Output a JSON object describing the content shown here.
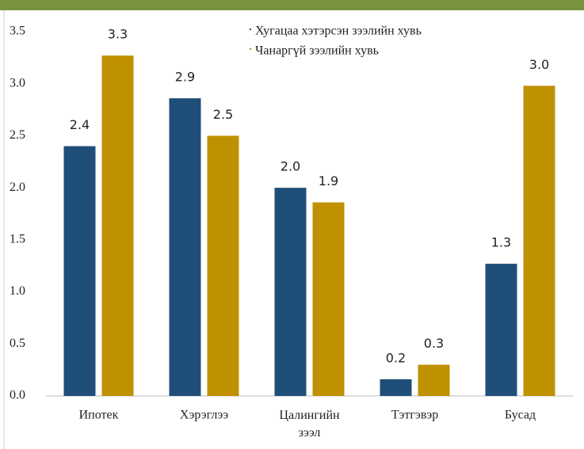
{
  "chart_data": {
    "type": "bar",
    "categories": [
      "Ипотек",
      "Хэрэглээ",
      "Цалингийн зээл",
      "Тэтгэвэр",
      "Бусад"
    ],
    "series": [
      {
        "name": "Хугацаа хэтэрсэн зээлийн хувь",
        "color": "#1f4e79",
        "values": [
          2.4,
          2.86,
          2.0,
          0.16,
          1.27
        ],
        "value_labels": [
          "2.4",
          "2.9",
          "2.0",
          "0.2",
          "1.3"
        ]
      },
      {
        "name": "Чанаргүй зээлийн хувь",
        "color": "#bf9000",
        "values": [
          3.27,
          2.5,
          1.86,
          0.3,
          2.98
        ],
        "value_labels": [
          "3.3",
          "2.5",
          "1.9",
          "0.3",
          "3.0"
        ]
      }
    ],
    "ylim": [
      0,
      3.5
    ],
    "yticks": [
      {
        "value": 0,
        "label": "0.0"
      },
      0.5,
      {
        "value": 1,
        "label": "1.0"
      },
      1.5,
      {
        "value": 2,
        "label": "2.0"
      },
      2.5,
      {
        "value": 3,
        "label": "3.0"
      },
      3.5
    ],
    "legend": "top-right"
  }
}
